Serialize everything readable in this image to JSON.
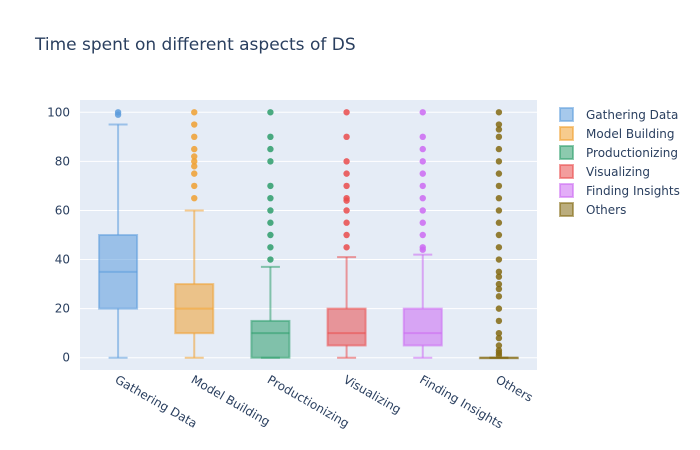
{
  "chart_data": {
    "type": "box",
    "title": "Time spent on different aspects of DS",
    "xlabel": "",
    "ylabel": "",
    "ylim": [
      -5,
      105
    ],
    "y_ticks": [
      0,
      20,
      40,
      60,
      80,
      100
    ],
    "grid": true,
    "legend_position": "right",
    "categories": [
      "Gathering Data",
      "Model Building",
      "Productionizing",
      "Visualizing",
      "Finding Insights",
      "Others"
    ],
    "series": [
      {
        "name": "Gathering Data",
        "color": "#5d9cdc",
        "min": 0,
        "q1": 20,
        "median": 35,
        "q3": 50,
        "max": 95,
        "outliers": [
          99,
          100
        ]
      },
      {
        "name": "Model Building",
        "color": "#f0a030",
        "min": 0,
        "q1": 10,
        "median": 20,
        "q3": 30,
        "max": 60,
        "outliers": [
          65,
          70,
          75,
          78,
          80,
          82,
          85,
          90,
          95,
          100
        ]
      },
      {
        "name": "Productionizing",
        "color": "#2e9e6b",
        "min": 0,
        "q1": 0,
        "median": 10,
        "q3": 15,
        "max": 37,
        "outliers": [
          40,
          45,
          50,
          55,
          60,
          65,
          70,
          80,
          85,
          90,
          100
        ]
      },
      {
        "name": "Visualizing",
        "color": "#ea4c4c",
        "min": 0,
        "q1": 5,
        "median": 10,
        "q3": 20,
        "max": 41,
        "outliers": [
          45,
          50,
          55,
          60,
          64,
          65,
          70,
          75,
          80,
          90,
          100
        ]
      },
      {
        "name": "Finding Insights",
        "color": "#cc6af2",
        "min": 0,
        "q1": 5,
        "median": 10,
        "q3": 20,
        "max": 42,
        "outliers": [
          44,
          45,
          50,
          55,
          60,
          65,
          70,
          75,
          80,
          85,
          90,
          100
        ]
      },
      {
        "name": "Others",
        "color": "#846a12",
        "min": 0,
        "q1": 0,
        "median": 0,
        "q3": 0,
        "max": 0,
        "outliers": [
          1,
          2,
          3,
          5,
          8,
          10,
          15,
          20,
          25,
          28,
          30,
          33,
          35,
          40,
          45,
          50,
          55,
          60,
          65,
          70,
          75,
          80,
          85,
          90,
          93,
          95,
          100
        ]
      }
    ]
  }
}
